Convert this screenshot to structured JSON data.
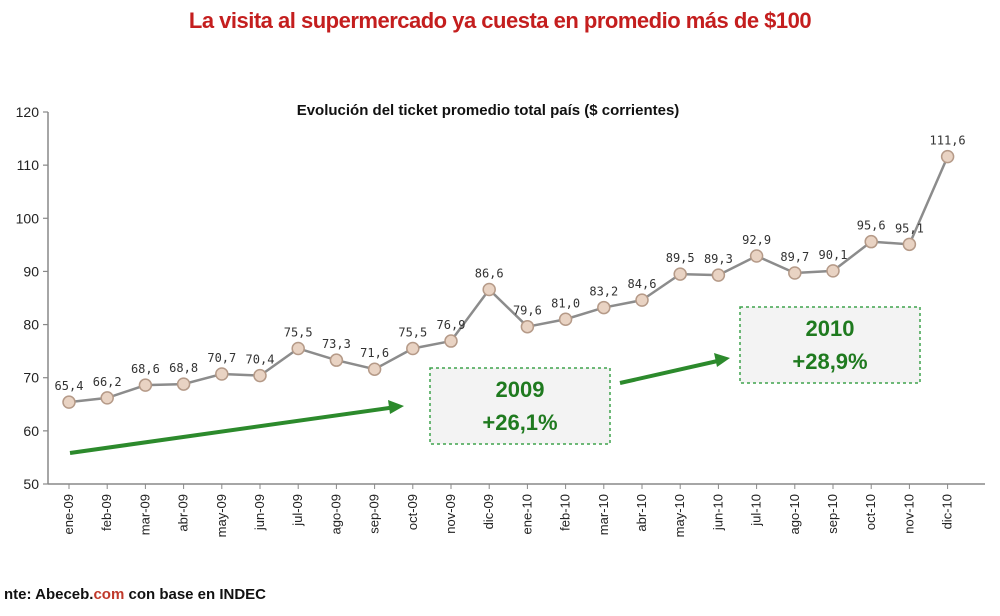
{
  "headline": "La visita al supermercado ya cuesta en promedio más de $100",
  "source": {
    "prefix": "nte: ",
    "brand_a": "Abeceb.",
    "brand_b": "com",
    "suffix": " con base en INDEC"
  },
  "colors": {
    "headline": "#c41e1e",
    "line": "#8c8c8c",
    "marker_fill": "#e9d3c3",
    "marker_stroke": "#b59a88",
    "arrow": "#2c8a2c",
    "callout_text": "#1f7a1f",
    "callout_border": "#3fa34d"
  },
  "chart_data": {
    "type": "line",
    "title": "Evolución del ticket promedio total país ($ corrientes)",
    "categories": [
      "ene-09",
      "feb-09",
      "mar-09",
      "abr-09",
      "may-09",
      "jun-09",
      "jul-09",
      "ago-09",
      "sep-09",
      "oct-09",
      "nov-09",
      "dic-09",
      "ene-10",
      "feb-10",
      "mar-10",
      "abr-10",
      "may-10",
      "jun-10",
      "jul-10",
      "ago-10",
      "sep-10",
      "oct-10",
      "nov-10",
      "dic-10"
    ],
    "values": [
      65.4,
      66.2,
      68.6,
      68.8,
      70.7,
      70.4,
      75.5,
      73.3,
      71.6,
      75.5,
      76.9,
      86.6,
      79.6,
      81.0,
      83.2,
      84.6,
      89.5,
      89.3,
      92.9,
      89.7,
      90.1,
      95.6,
      95.1,
      111.6
    ],
    "data_labels": [
      "65,4",
      "66,2",
      "68,6",
      "68,8",
      "70,7",
      "70,4",
      "75,5",
      "73,3",
      "71,6",
      "75,5",
      "76,9",
      "86,6",
      "79,6",
      "81,0",
      "83,2",
      "84,6",
      "89,5",
      "89,3",
      "92,9",
      "89,7",
      "90,1",
      "95,6",
      "95,1",
      "111,6"
    ],
    "ylim": [
      50,
      120
    ],
    "yticks": [
      "50",
      "60",
      "70",
      "80",
      "90",
      "100",
      "110",
      "120"
    ],
    "grid": false,
    "legend": "none",
    "annotations": [
      {
        "year": "2009",
        "change": "+26,1%"
      },
      {
        "year": "2010",
        "change": "+28,9%"
      }
    ]
  }
}
